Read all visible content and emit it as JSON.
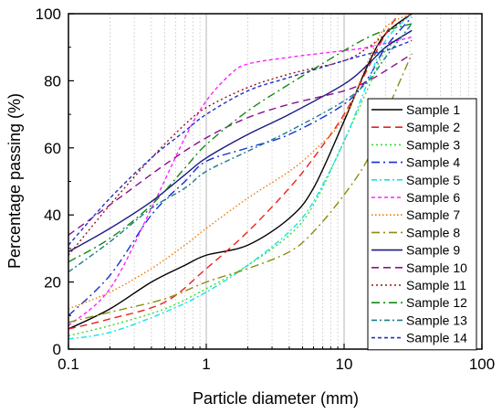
{
  "chart_data": {
    "type": "line",
    "title": "",
    "xlabel": "Particle diameter (mm)",
    "ylabel": "Percentage passing (%)",
    "x_scale": "log",
    "xlim": [
      0.1,
      100
    ],
    "ylim": [
      0,
      100
    ],
    "x_ticks": [
      0.1,
      1,
      10,
      100
    ],
    "x_tick_labels": [
      "0.1",
      "1",
      "10",
      "100"
    ],
    "y_ticks": [
      0,
      20,
      40,
      60,
      80,
      100
    ],
    "y_tick_labels": [
      "0",
      "20",
      "40",
      "60",
      "80",
      "100"
    ],
    "grid": true,
    "legend_placement": "right",
    "series": [
      {
        "name": "Sample 1",
        "color": "#000000",
        "dash": "solid",
        "points": [
          [
            0.1,
            6
          ],
          [
            0.2,
            12
          ],
          [
            0.4,
            20
          ],
          [
            0.7,
            25
          ],
          [
            1,
            28
          ],
          [
            2,
            31
          ],
          [
            4,
            39
          ],
          [
            6,
            48
          ],
          [
            10,
            68
          ],
          [
            15,
            85
          ],
          [
            20,
            94
          ],
          [
            31,
            100
          ]
        ]
      },
      {
        "name": "Sample 2",
        "color": "#e8221e",
        "dash": "dash",
        "points": [
          [
            0.1,
            6
          ],
          [
            0.2,
            9
          ],
          [
            0.5,
            14
          ],
          [
            1,
            24
          ],
          [
            2,
            35
          ],
          [
            4,
            48
          ],
          [
            6,
            57
          ],
          [
            10,
            70
          ],
          [
            15,
            84
          ],
          [
            20,
            94
          ],
          [
            25,
            100
          ]
        ]
      },
      {
        "name": "Sample 3",
        "color": "#33dd33",
        "dash": "dot",
        "points": [
          [
            0.1,
            4
          ],
          [
            0.2,
            7
          ],
          [
            0.5,
            12
          ],
          [
            1,
            18
          ],
          [
            2,
            25
          ],
          [
            4,
            34
          ],
          [
            6,
            43
          ],
          [
            10,
            62
          ],
          [
            15,
            78
          ],
          [
            20,
            89
          ],
          [
            31,
            95
          ]
        ]
      },
      {
        "name": "Sample 4",
        "color": "#1530d0",
        "dash": "dashdot",
        "points": [
          [
            0.1,
            10
          ],
          [
            0.2,
            22
          ],
          [
            0.4,
            40
          ],
          [
            0.7,
            50
          ],
          [
            1,
            56
          ],
          [
            2,
            60
          ],
          [
            4,
            64
          ],
          [
            10,
            73
          ],
          [
            15,
            81
          ],
          [
            20,
            90
          ],
          [
            31,
            99
          ]
        ]
      },
      {
        "name": "Sample 5",
        "color": "#11e6e6",
        "dash": "dashdot2",
        "points": [
          [
            0.1,
            3
          ],
          [
            0.2,
            5
          ],
          [
            0.5,
            11
          ],
          [
            1,
            17
          ],
          [
            2,
            25
          ],
          [
            4,
            35
          ],
          [
            6,
            44
          ],
          [
            10,
            62
          ],
          [
            15,
            80
          ],
          [
            20,
            92
          ],
          [
            31,
            100
          ]
        ]
      },
      {
        "name": "Sample 6",
        "color": "#ff22ff",
        "dash": "dash-short",
        "points": [
          [
            0.1,
            7
          ],
          [
            0.2,
            18
          ],
          [
            0.4,
            42
          ],
          [
            0.7,
            63
          ],
          [
            1,
            74
          ],
          [
            1.5,
            82
          ],
          [
            2,
            85
          ],
          [
            4,
            87
          ],
          [
            10,
            89
          ],
          [
            15,
            90
          ],
          [
            31,
            93
          ]
        ]
      },
      {
        "name": "Sample 7",
        "color": "#f07800",
        "dash": "dot-short",
        "points": [
          [
            0.1,
            12
          ],
          [
            0.2,
            17
          ],
          [
            0.4,
            24
          ],
          [
            0.7,
            31
          ],
          [
            1,
            36
          ],
          [
            2,
            45
          ],
          [
            4,
            53
          ],
          [
            6,
            59
          ],
          [
            10,
            69
          ],
          [
            15,
            86
          ],
          [
            20,
            96
          ],
          [
            31,
            100
          ]
        ]
      },
      {
        "name": "Sample 8",
        "color": "#8d8d10",
        "dash": "dashdot",
        "points": [
          [
            0.1,
            8
          ],
          [
            0.2,
            11
          ],
          [
            0.5,
            15
          ],
          [
            1,
            20
          ],
          [
            2,
            24
          ],
          [
            4,
            29
          ],
          [
            6,
            35
          ],
          [
            10,
            46
          ],
          [
            15,
            57
          ],
          [
            20,
            70
          ],
          [
            31,
            88
          ]
        ]
      },
      {
        "name": "Sample 9",
        "color": "#1a1a88",
        "dash": "solid",
        "points": [
          [
            0.1,
            29
          ],
          [
            0.2,
            36
          ],
          [
            0.4,
            44
          ],
          [
            0.7,
            52
          ],
          [
            1,
            57
          ],
          [
            2,
            64
          ],
          [
            4,
            70
          ],
          [
            10,
            79
          ],
          [
            15,
            85
          ],
          [
            20,
            90
          ],
          [
            31,
            95
          ]
        ]
      },
      {
        "name": "Sample 10",
        "color": "#8b1090",
        "dash": "dash",
        "points": [
          [
            0.1,
            34
          ],
          [
            0.2,
            43
          ],
          [
            0.5,
            55
          ],
          [
            1,
            63
          ],
          [
            2,
            69
          ],
          [
            4,
            73
          ],
          [
            10,
            77
          ],
          [
            15,
            80
          ],
          [
            20,
            83
          ],
          [
            31,
            88
          ]
        ]
      },
      {
        "name": "Sample 11",
        "color": "#9a1010",
        "dash": "dot",
        "points": [
          [
            0.1,
            28
          ],
          [
            0.2,
            43
          ],
          [
            0.4,
            57
          ],
          [
            0.7,
            67
          ],
          [
            1,
            72
          ],
          [
            2,
            78
          ],
          [
            4,
            82
          ],
          [
            10,
            86
          ],
          [
            15,
            90
          ],
          [
            20,
            94
          ],
          [
            31,
            100
          ]
        ]
      },
      {
        "name": "Sample 12",
        "color": "#168a16",
        "dash": "dashdot",
        "points": [
          [
            0.1,
            26
          ],
          [
            0.2,
            33
          ],
          [
            0.4,
            43
          ],
          [
            0.7,
            54
          ],
          [
            1,
            61
          ],
          [
            2,
            71
          ],
          [
            4,
            79
          ],
          [
            10,
            89
          ],
          [
            15,
            93
          ],
          [
            20,
            95
          ],
          [
            31,
            97
          ]
        ]
      },
      {
        "name": "Sample 13",
        "color": "#1b7d88",
        "dash": "dashdot2",
        "points": [
          [
            0.1,
            23
          ],
          [
            0.2,
            32
          ],
          [
            0.4,
            42
          ],
          [
            0.7,
            48
          ],
          [
            1,
            53
          ],
          [
            2,
            59
          ],
          [
            4,
            65
          ],
          [
            10,
            74
          ],
          [
            15,
            80
          ],
          [
            20,
            87
          ],
          [
            31,
            97
          ]
        ]
      },
      {
        "name": "Sample 14",
        "color": "#1e30c8",
        "dash": "dash-short",
        "points": [
          [
            0.1,
            31
          ],
          [
            0.2,
            45
          ],
          [
            0.4,
            57
          ],
          [
            0.7,
            65
          ],
          [
            1,
            70
          ],
          [
            2,
            77
          ],
          [
            4,
            81
          ],
          [
            10,
            86
          ],
          [
            15,
            88
          ],
          [
            20,
            89
          ],
          [
            31,
            92
          ]
        ]
      }
    ]
  }
}
